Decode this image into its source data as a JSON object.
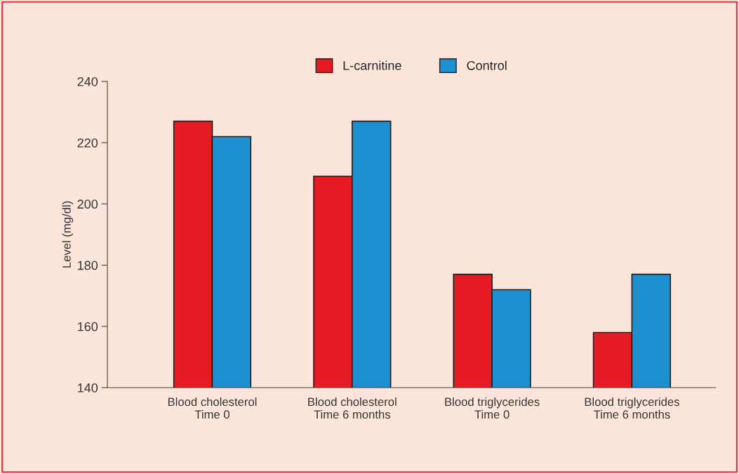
{
  "chart_data": {
    "type": "bar",
    "ylabel": "Level (mg/dl)",
    "categories": [
      "Blood cholesterol\nTime 0",
      "Blood cholesterol\nTime 6 months",
      "Blood triglycerides\nTime 0",
      "Blood triglycerides\nTime 6 months"
    ],
    "series": [
      {
        "name": "L-carnitine",
        "color": "#e51b23",
        "values": [
          227,
          209,
          177,
          158
        ]
      },
      {
        "name": "Control",
        "color": "#1e8fcf",
        "values": [
          222,
          227,
          172,
          177
        ]
      }
    ],
    "ylim": [
      140,
      240
    ],
    "yticks": [
      140,
      160,
      180,
      200,
      220,
      240
    ],
    "grid": false,
    "legend": "top"
  }
}
